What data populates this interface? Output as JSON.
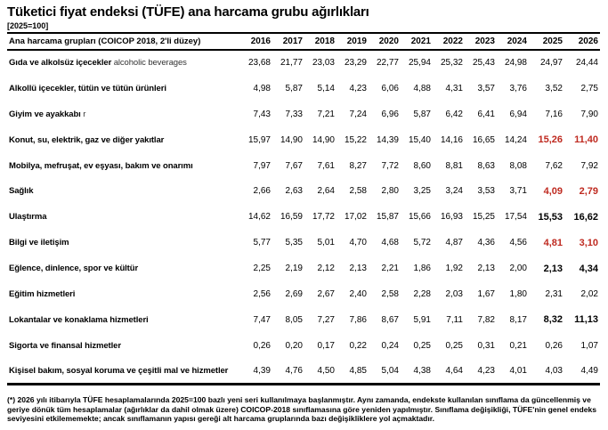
{
  "page": {
    "title": "Tüketici fiyat endeksi (TÜFE) ana harcama grubu ağırlıkları",
    "subtitle": "[2025=100]",
    "footnote": "(*) 2026 yılı itibarıyla TÜFE hesaplamalarında 2025=100 bazlı yeni seri kullanılmaya başlanmıştır. Aynı zamanda, endekste kullanılan sınıflama da güncellenmiş ve geriye dönük tüm hesaplamalar (ağırlıklar da dahil olmak üzere) COICOP-2018 sınıflamasına göre yeniden yapılmıştır. Sınıflama değişikliği, TÜFE'nin genel endeks seviyesini etkilememekte; ancak sınıflamanın yapısı gereği alt harcama gruplarında bazı değişikliklere yol açmaktadır."
  },
  "colors": {
    "text": "#000000",
    "highlight_red": "#bf2a20"
  },
  "table": {
    "header_label": "Ana harcama grupları (COICOP 2018, 2'li düzey)",
    "years": [
      "2016",
      "2017",
      "2018",
      "2019",
      "2020",
      "2021",
      "2022",
      "2023",
      "2024",
      "2025",
      "2026"
    ],
    "highlight_column_start_index": 9,
    "rows": [
      {
        "label": "Gıda ve alkolsüz içecekler",
        "label_suffix": "alcoholic beverages",
        "values": [
          "23,68",
          "21,77",
          "23,03",
          "23,29",
          "22,77",
          "25,94",
          "25,32",
          "25,43",
          "24,98",
          "24,97",
          "24,44"
        ],
        "highlight": "none"
      },
      {
        "label": "Alkollü içecekler, tütün ve tütün ürünleri",
        "label_suffix": "",
        "values": [
          "4,98",
          "5,87",
          "5,14",
          "4,23",
          "6,06",
          "4,88",
          "4,31",
          "3,57",
          "3,76",
          "3,52",
          "2,75"
        ],
        "highlight": "none"
      },
      {
        "label": "Giyim ve ayakkabı",
        "label_suffix": "r",
        "values": [
          "7,43",
          "7,33",
          "7,21",
          "7,24",
          "6,96",
          "5,87",
          "6,42",
          "6,41",
          "6,94",
          "7,16",
          "7,90"
        ],
        "highlight": "none"
      },
      {
        "label": "Konut, su, elektrik, gaz ve diğer yakıtlar",
        "label_suffix": "",
        "values": [
          "15,97",
          "14,90",
          "14,90",
          "15,22",
          "14,39",
          "15,40",
          "14,16",
          "16,65",
          "14,24",
          "15,26",
          "11,40"
        ],
        "highlight": "red"
      },
      {
        "label": "Mobilya, mefruşat, ev eşyası, bakım ve onarımı",
        "label_suffix": "",
        "values": [
          "7,97",
          "7,67",
          "7,61",
          "8,27",
          "7,72",
          "8,60",
          "8,81",
          "8,63",
          "8,08",
          "7,62",
          "7,92"
        ],
        "highlight": "none"
      },
      {
        "label": "Sağlık",
        "label_suffix": "",
        "values": [
          "2,66",
          "2,63",
          "2,64",
          "2,58",
          "2,80",
          "3,25",
          "3,24",
          "3,53",
          "3,71",
          "4,09",
          "2,79"
        ],
        "highlight": "red"
      },
      {
        "label": "Ulaştırma",
        "label_suffix": "",
        "values": [
          "14,62",
          "16,59",
          "17,72",
          "17,02",
          "15,87",
          "15,66",
          "16,93",
          "15,25",
          "17,54",
          "15,53",
          "16,62"
        ],
        "highlight": "bold"
      },
      {
        "label": "Bilgi ve iletişim",
        "label_suffix": "",
        "values": [
          "5,77",
          "5,35",
          "5,01",
          "4,70",
          "4,68",
          "5,72",
          "4,87",
          "4,36",
          "4,56",
          "4,81",
          "3,10"
        ],
        "highlight": "red"
      },
      {
        "label": "Eğlence, dinlence, spor ve kültür",
        "label_suffix": "",
        "values": [
          "2,25",
          "2,19",
          "2,12",
          "2,13",
          "2,21",
          "1,86",
          "1,92",
          "2,13",
          "2,00",
          "2,13",
          "4,34"
        ],
        "highlight": "bold"
      },
      {
        "label": "Eğitim hizmetleri",
        "label_suffix": "",
        "values": [
          "2,56",
          "2,69",
          "2,67",
          "2,40",
          "2,58",
          "2,28",
          "2,03",
          "1,67",
          "1,80",
          "2,31",
          "2,02"
        ],
        "highlight": "none"
      },
      {
        "label": "Lokantalar ve konaklama hizmetleri",
        "label_suffix": "",
        "values": [
          "7,47",
          "8,05",
          "7,27",
          "7,86",
          "8,67",
          "5,91",
          "7,11",
          "7,82",
          "8,17",
          "8,32",
          "11,13"
        ],
        "highlight": "bold"
      },
      {
        "label": "Sigorta ve finansal hizmetler",
        "label_suffix": "",
        "values": [
          "0,26",
          "0,20",
          "0,17",
          "0,22",
          "0,24",
          "0,25",
          "0,25",
          "0,31",
          "0,21",
          "0,26",
          "1,07"
        ],
        "highlight": "none"
      },
      {
        "label": "Kişisel bakım, sosyal koruma ve çeşitli mal ve hizmetler",
        "label_suffix": "",
        "values": [
          "4,39",
          "4,76",
          "4,50",
          "4,85",
          "5,04",
          "4,38",
          "4,64",
          "4,23",
          "4,01",
          "4,03",
          "4,49"
        ],
        "highlight": "none"
      }
    ]
  }
}
